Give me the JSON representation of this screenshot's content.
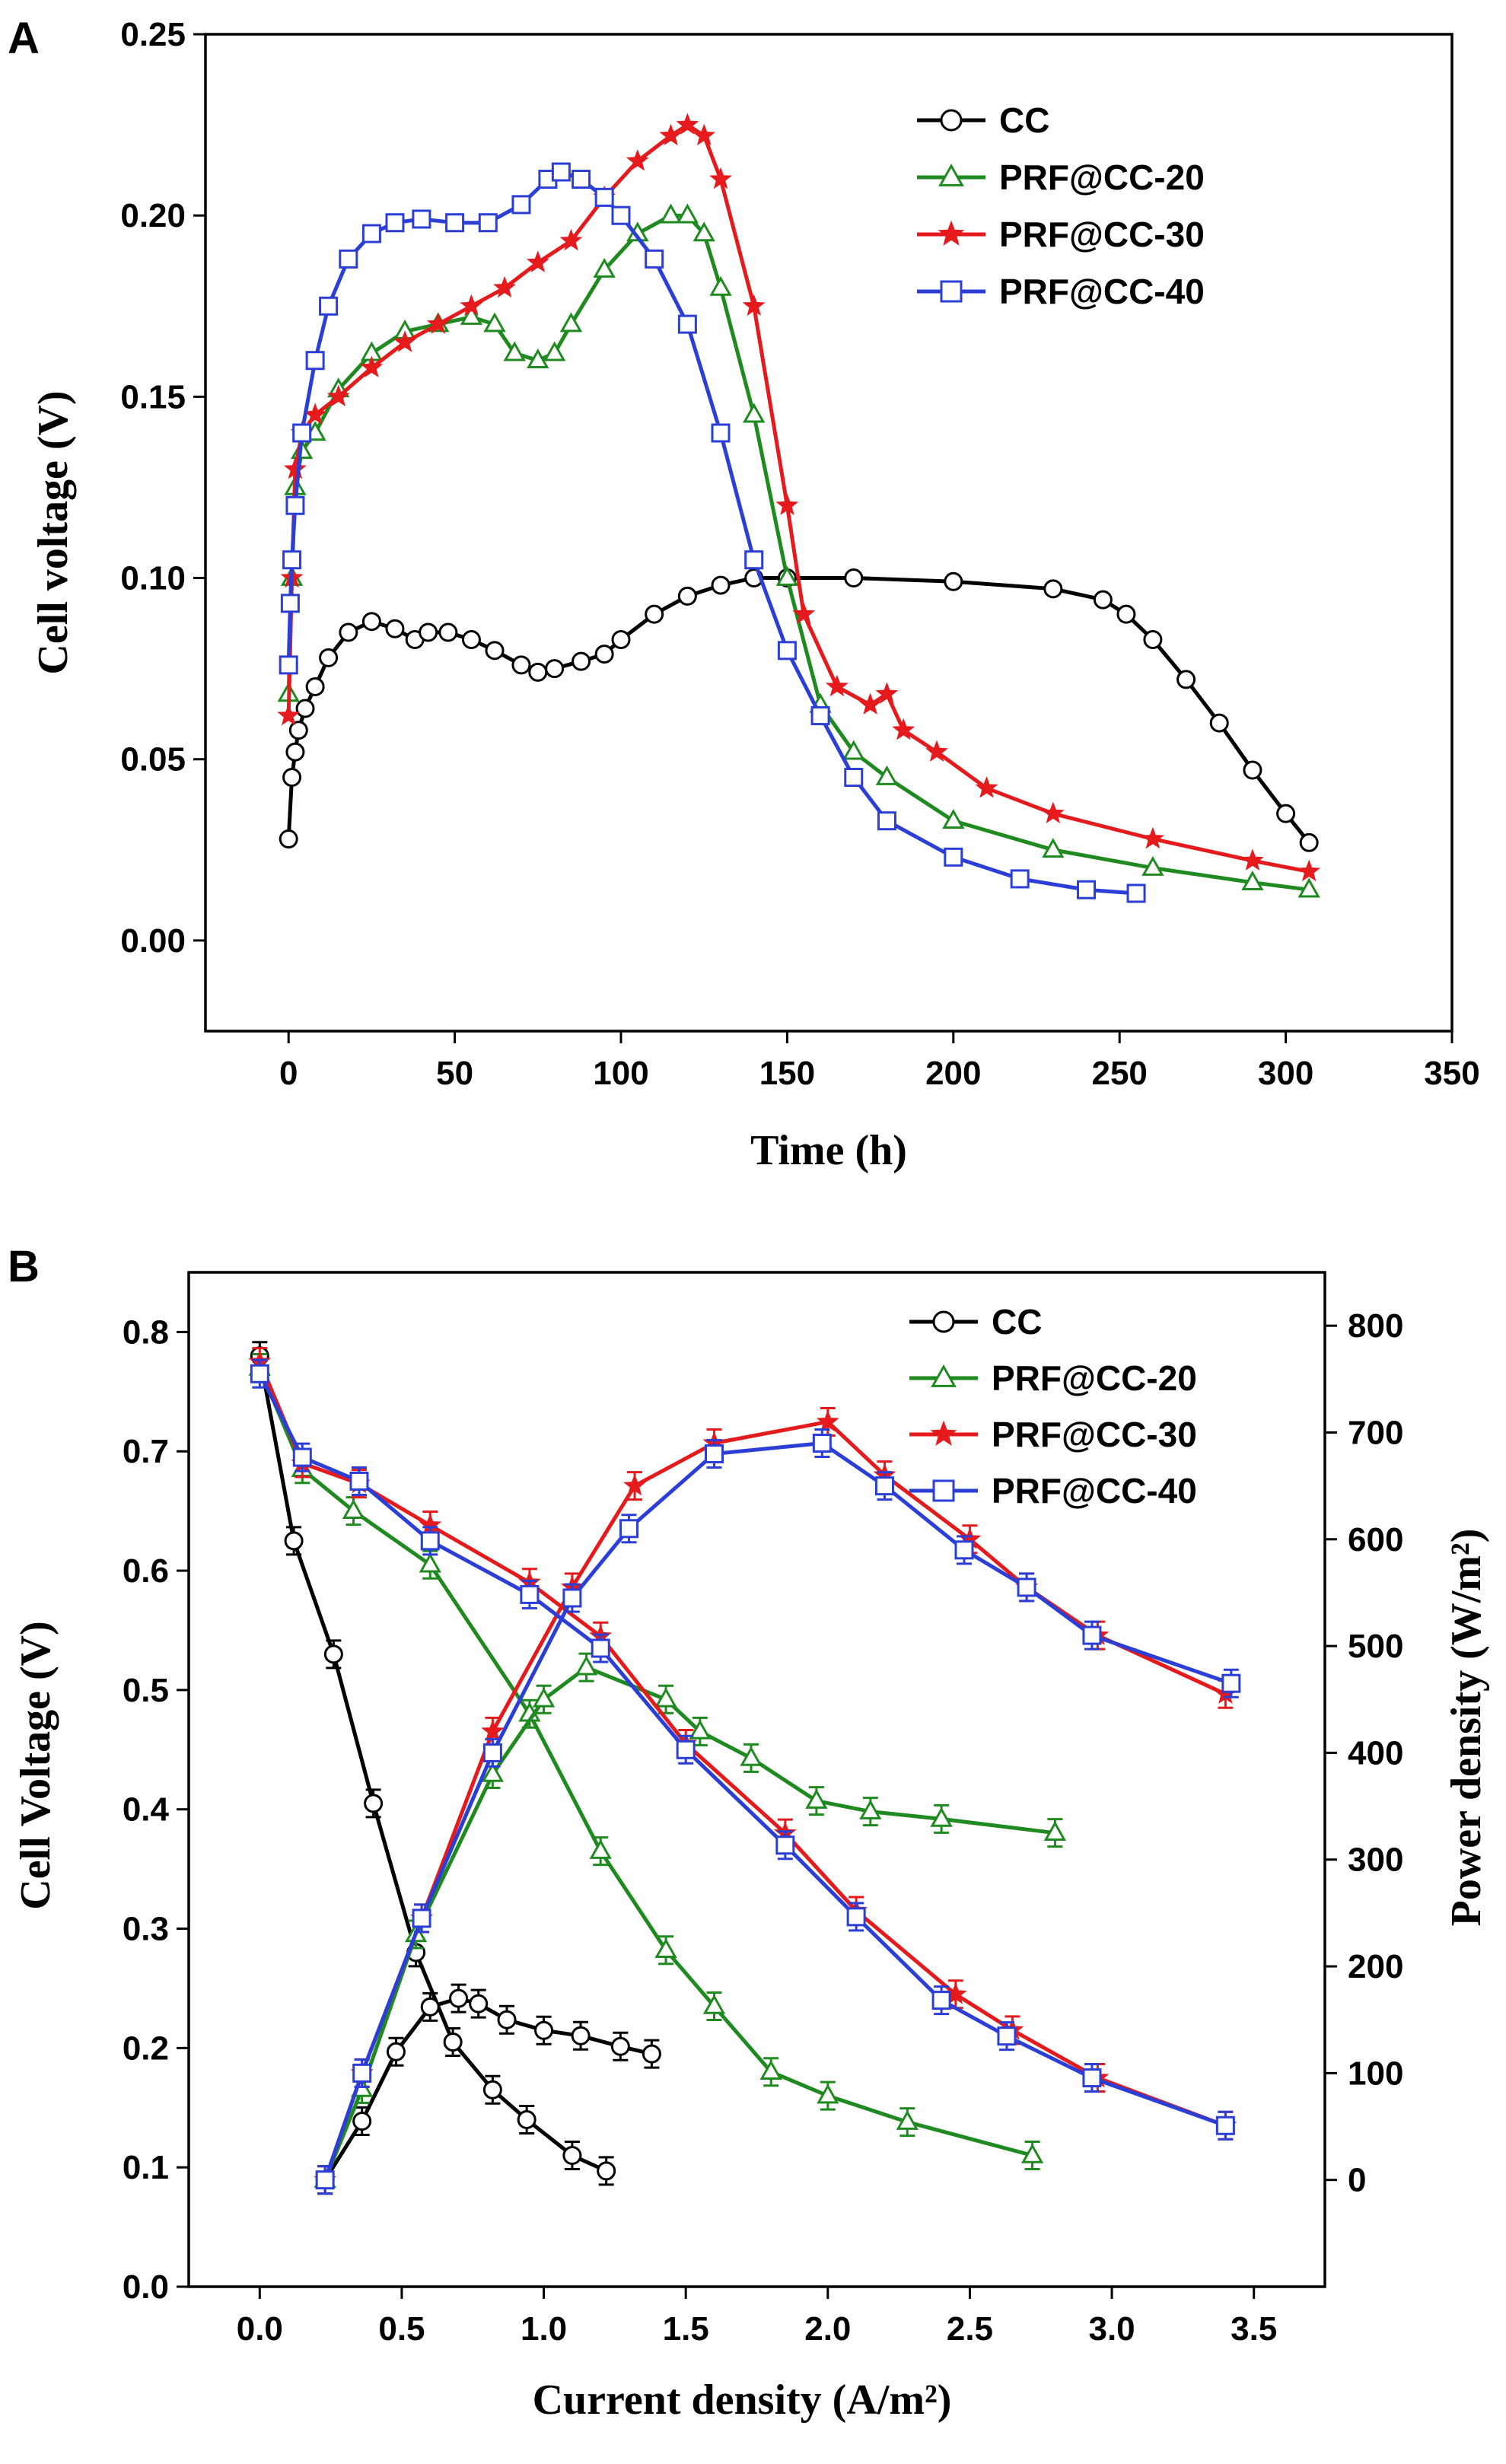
{
  "chart_data": [
    {
      "panel": "A",
      "type": "line",
      "title": "",
      "xlabel": "Time (h)",
      "ylabel": "Cell voltage (V)",
      "xlim": [
        -25,
        350
      ],
      "ylim": [
        -0.025,
        0.25
      ],
      "xticks": [
        "0",
        "50",
        "100",
        "150",
        "200",
        "250",
        "300",
        "350"
      ],
      "yticks": [
        "0.00",
        "0.05",
        "0.10",
        "0.15",
        "0.20",
        "0.25"
      ],
      "legend_position": "top-right",
      "series": [
        {
          "name": "CC",
          "color": "#000000",
          "marker": "circle",
          "x": [
            0,
            1,
            2,
            3,
            5,
            8,
            12,
            18,
            25,
            32,
            38,
            42,
            48,
            55,
            62,
            70,
            75,
            80,
            88,
            95,
            100,
            110,
            120,
            130,
            140,
            150,
            170,
            200,
            230,
            245,
            252,
            260,
            270,
            280,
            290,
            300,
            307
          ],
          "y": [
            0.028,
            0.045,
            0.052,
            0.058,
            0.064,
            0.07,
            0.078,
            0.085,
            0.088,
            0.086,
            0.083,
            0.085,
            0.085,
            0.083,
            0.08,
            0.076,
            0.074,
            0.075,
            0.077,
            0.079,
            0.083,
            0.09,
            0.095,
            0.098,
            0.1,
            0.1,
            0.1,
            0.099,
            0.097,
            0.094,
            0.09,
            0.083,
            0.072,
            0.06,
            0.047,
            0.035,
            0.027
          ]
        },
        {
          "name": "PRF@CC-20",
          "color": "#1f8a1f",
          "marker": "triangle",
          "x": [
            0,
            1,
            2,
            4,
            8,
            15,
            25,
            35,
            45,
            55,
            62,
            68,
            75,
            80,
            85,
            95,
            105,
            115,
            120,
            125,
            130,
            140,
            150,
            160,
            170,
            180,
            200,
            230,
            260,
            290,
            307
          ],
          "y": [
            0.068,
            0.1,
            0.125,
            0.135,
            0.14,
            0.152,
            0.162,
            0.168,
            0.17,
            0.172,
            0.17,
            0.162,
            0.16,
            0.162,
            0.17,
            0.185,
            0.195,
            0.2,
            0.2,
            0.195,
            0.18,
            0.145,
            0.1,
            0.065,
            0.052,
            0.045,
            0.033,
            0.025,
            0.02,
            0.016,
            0.014
          ]
        },
        {
          "name": "PRF@CC-30",
          "color": "#e41a1c",
          "marker": "star",
          "x": [
            0,
            1,
            2,
            4,
            8,
            15,
            25,
            35,
            45,
            55,
            65,
            75,
            85,
            95,
            105,
            115,
            120,
            125,
            130,
            140,
            150,
            155,
            165,
            175,
            180,
            185,
            195,
            210,
            230,
            260,
            290,
            307
          ],
          "y": [
            0.062,
            0.1,
            0.13,
            0.14,
            0.145,
            0.15,
            0.158,
            0.165,
            0.17,
            0.175,
            0.18,
            0.187,
            0.193,
            0.205,
            0.215,
            0.222,
            0.225,
            0.222,
            0.21,
            0.175,
            0.12,
            0.09,
            0.07,
            0.065,
            0.068,
            0.058,
            0.052,
            0.042,
            0.035,
            0.028,
            0.022,
            0.019
          ]
        },
        {
          "name": "PRF@CC-40",
          "color": "#2b3fd6",
          "marker": "square",
          "x": [
            0,
            0.5,
            1,
            2,
            4,
            8,
            12,
            18,
            25,
            32,
            40,
            50,
            60,
            70,
            78,
            82,
            88,
            95,
            100,
            110,
            120,
            130,
            140,
            150,
            160,
            170,
            180,
            200,
            220,
            240,
            255
          ],
          "y": [
            0.076,
            0.093,
            0.105,
            0.12,
            0.14,
            0.16,
            0.175,
            0.188,
            0.195,
            0.198,
            0.199,
            0.198,
            0.198,
            0.203,
            0.21,
            0.212,
            0.21,
            0.205,
            0.2,
            0.188,
            0.17,
            0.14,
            0.105,
            0.08,
            0.062,
            0.045,
            0.033,
            0.023,
            0.017,
            0.014,
            0.013
          ]
        }
      ]
    },
    {
      "panel": "B",
      "type": "line",
      "title": "",
      "xlabel": "Current density (A/m²)",
      "ylabel_left": "Cell Voltage (V)",
      "ylabel_right": "Power density (W/m²)",
      "xlim": [
        -0.25,
        3.75
      ],
      "ylim_left": [
        0.0,
        0.85
      ],
      "ylim_right": [
        -100,
        850
      ],
      "xticks": [
        "0.0",
        "0.5",
        "1.0",
        "1.5",
        "2.0",
        "2.5",
        "3.0",
        "3.5"
      ],
      "yticks_left": [
        "0.0",
        "0.1",
        "0.2",
        "0.3",
        "0.4",
        "0.5",
        "0.6",
        "0.7",
        "0.8"
      ],
      "yticks_right": [
        "0",
        "100",
        "200",
        "300",
        "400",
        "500",
        "600",
        "700",
        "800"
      ],
      "legend_position": "top-right",
      "series": [
        {
          "name": "CC",
          "color": "#000000",
          "marker": "circle",
          "voltage": {
            "x": [
              0.0,
              0.12,
              0.26,
              0.4,
              0.55,
              0.68,
              0.82,
              0.94,
              1.1,
              1.22
            ],
            "y": [
              0.78,
              0.625,
              0.53,
              0.405,
              0.28,
              0.205,
              0.165,
              0.14,
              0.11,
              0.097
            ]
          },
          "power": {
            "x": [
              0.23,
              0.36,
              0.48,
              0.6,
              0.7,
              0.77,
              0.87,
              1.0,
              1.13,
              1.27,
              1.38
            ],
            "y": [
              0,
              55,
              120,
              162,
              170,
              165,
              150,
              140,
              135,
              125,
              118
            ]
          }
        },
        {
          "name": "PRF@CC-20",
          "color": "#1f8a1f",
          "marker": "triangle",
          "voltage": {
            "x": [
              0.0,
              0.15,
              0.33,
              0.6,
              0.95,
              1.2,
              1.43,
              1.6,
              1.8,
              2.0,
              2.28,
              2.72
            ],
            "y": [
              0.77,
              0.685,
              0.65,
              0.605,
              0.48,
              0.365,
              0.282,
              0.235,
              0.18,
              0.16,
              0.138,
              0.11
            ]
          },
          "power": {
            "x": [
              0.23,
              0.36,
              0.55,
              0.82,
              1.0,
              1.15,
              1.43,
              1.55,
              1.73,
              1.96,
              2.15,
              2.4,
              2.8
            ],
            "y": [
              0,
              85,
              230,
              380,
              450,
              480,
              450,
              420,
              395,
              355,
              345,
              338,
              325
            ]
          }
        },
        {
          "name": "PRF@CC-30",
          "color": "#e41a1c",
          "marker": "star",
          "voltage": {
            "x": [
              0.0,
              0.15,
              0.35,
              0.6,
              0.95,
              1.2,
              1.5,
              1.85,
              2.1,
              2.45,
              2.65,
              2.95,
              3.4
            ],
            "y": [
              0.775,
              0.69,
              0.673,
              0.638,
              0.59,
              0.545,
              0.455,
              0.38,
              0.315,
              0.245,
              0.215,
              0.175,
              0.135
            ]
          },
          "power": {
            "x": [
              0.23,
              0.36,
              0.57,
              0.82,
              1.1,
              1.32,
              1.6,
              2.0,
              2.2,
              2.5,
              2.7,
              2.95,
              3.4
            ],
            "y": [
              0,
              100,
              245,
              420,
              555,
              650,
              690,
              710,
              660,
              600,
              555,
              510,
              455
            ]
          }
        },
        {
          "name": "PRF@CC-40",
          "color": "#2b3fd6",
          "marker": "square",
          "voltage": {
            "x": [
              0.0,
              0.15,
              0.35,
              0.6,
              0.95,
              1.2,
              1.5,
              1.85,
              2.1,
              2.4,
              2.63,
              2.93,
              3.4
            ],
            "y": [
              0.765,
              0.695,
              0.675,
              0.625,
              0.58,
              0.535,
              0.45,
              0.37,
              0.31,
              0.24,
              0.21,
              0.175,
              0.135
            ]
          },
          "power": {
            "x": [
              0.23,
              0.36,
              0.57,
              0.82,
              1.1,
              1.3,
              1.6,
              1.98,
              2.2,
              2.48,
              2.7,
              2.93,
              3.42
            ],
            "y": [
              0,
              100,
              245,
              400,
              545,
              610,
              680,
              690,
              650,
              590,
              555,
              510,
              465
            ]
          }
        }
      ]
    }
  ]
}
